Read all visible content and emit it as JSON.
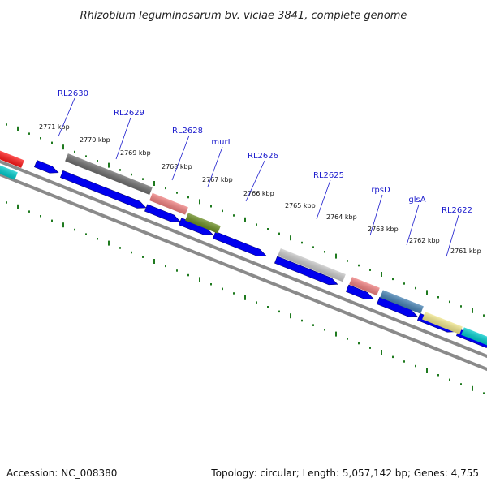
{
  "title": "Rhizobium leguminosarum bv. viciae 3841, complete genome",
  "footer": {
    "accession": "Accession: NC_008380",
    "summary": "Topology: circular; Length: 5,057,142 bp; Genes: 4,755"
  },
  "colors": {
    "backbone": "#808080",
    "tick": "#1f7a1f",
    "label": "#1a1acd",
    "cds": "#0000ee"
  },
  "scale_labels": [
    "2771 kbp",
    "2770 kbp",
    "2769 kbp",
    "2768 kbp",
    "2767 kbp",
    "2766 kbp",
    "2765 kbp",
    "2764 kbp",
    "2763 kbp",
    "2762 kbp",
    "2761 kbp"
  ],
  "gene_labels": [
    "RL2630",
    "RL2629",
    "RL2628",
    "murI",
    "RL2626",
    "RL2625",
    "rpsD",
    "glsA",
    "RL2622"
  ],
  "features": [
    {
      "track": "cog",
      "color": "#ff1a1a"
    },
    {
      "track": "cog",
      "color": "#00cccc"
    },
    {
      "track": "cog",
      "color": "#6e6e6e"
    },
    {
      "track": "cog",
      "color": "#f08080"
    },
    {
      "track": "cog",
      "color": "#6b8e23"
    },
    {
      "track": "cog",
      "color": "#c8c8c8"
    },
    {
      "track": "cog",
      "color": "#f08080"
    },
    {
      "track": "cog",
      "color": "#4682b4"
    },
    {
      "track": "cog",
      "color": "#f0e68c"
    },
    {
      "track": "cog",
      "color": "#00cccc"
    }
  ]
}
